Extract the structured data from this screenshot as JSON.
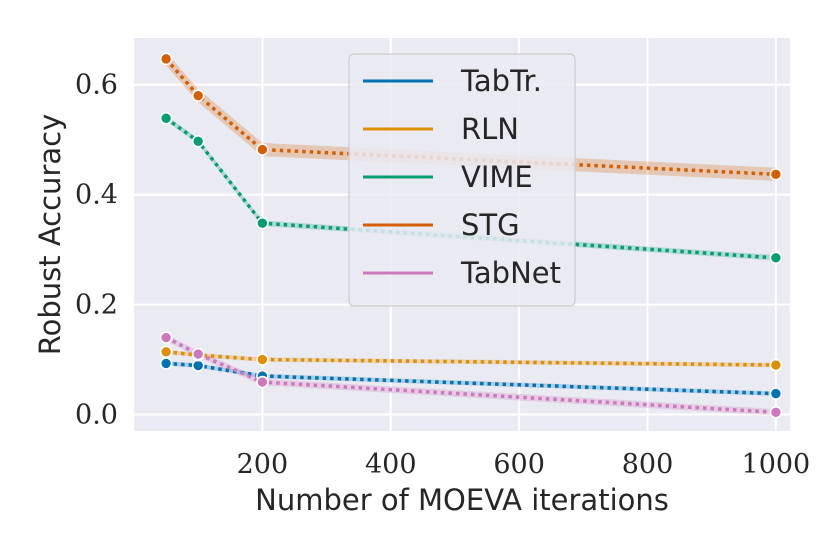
{
  "chart_data": {
    "type": "line",
    "title": "",
    "xlabel": "Number of MOEVA iterations",
    "ylabel": "Robust Accuracy",
    "xlim": [
      0,
      1022
    ],
    "ylim": [
      -0.03,
      0.685
    ],
    "xticks": [
      200,
      400,
      600,
      800,
      1000
    ],
    "xtick_labels": [
      "200",
      "400",
      "600",
      "800",
      "1000"
    ],
    "yticks": [
      0.0,
      0.2,
      0.4,
      0.6
    ],
    "ytick_labels": [
      "0.0",
      "0.2",
      "0.4",
      "0.6"
    ],
    "grid": true,
    "legend_position": "upper-center",
    "x": [
      50,
      100,
      200,
      1000
    ],
    "series": [
      {
        "name": "TabTr.",
        "color": "#0173b2",
        "values": [
          0.093,
          0.089,
          0.07,
          0.038
        ],
        "band": 0.004
      },
      {
        "name": "RLN",
        "color": "#de8f05",
        "values": [
          0.114,
          0.108,
          0.1,
          0.09
        ],
        "band": 0.004
      },
      {
        "name": "VIME",
        "color": "#029e73",
        "values": [
          0.539,
          0.497,
          0.348,
          0.285
        ],
        "band": 0.005
      },
      {
        "name": "STG",
        "color": "#d55e00",
        "values": [
          0.647,
          0.58,
          0.482,
          0.437
        ],
        "band": 0.012
      },
      {
        "name": "TabNet",
        "color": "#cc78bc",
        "values": [
          0.14,
          0.11,
          0.059,
          0.004
        ],
        "band": 0.006
      }
    ]
  }
}
